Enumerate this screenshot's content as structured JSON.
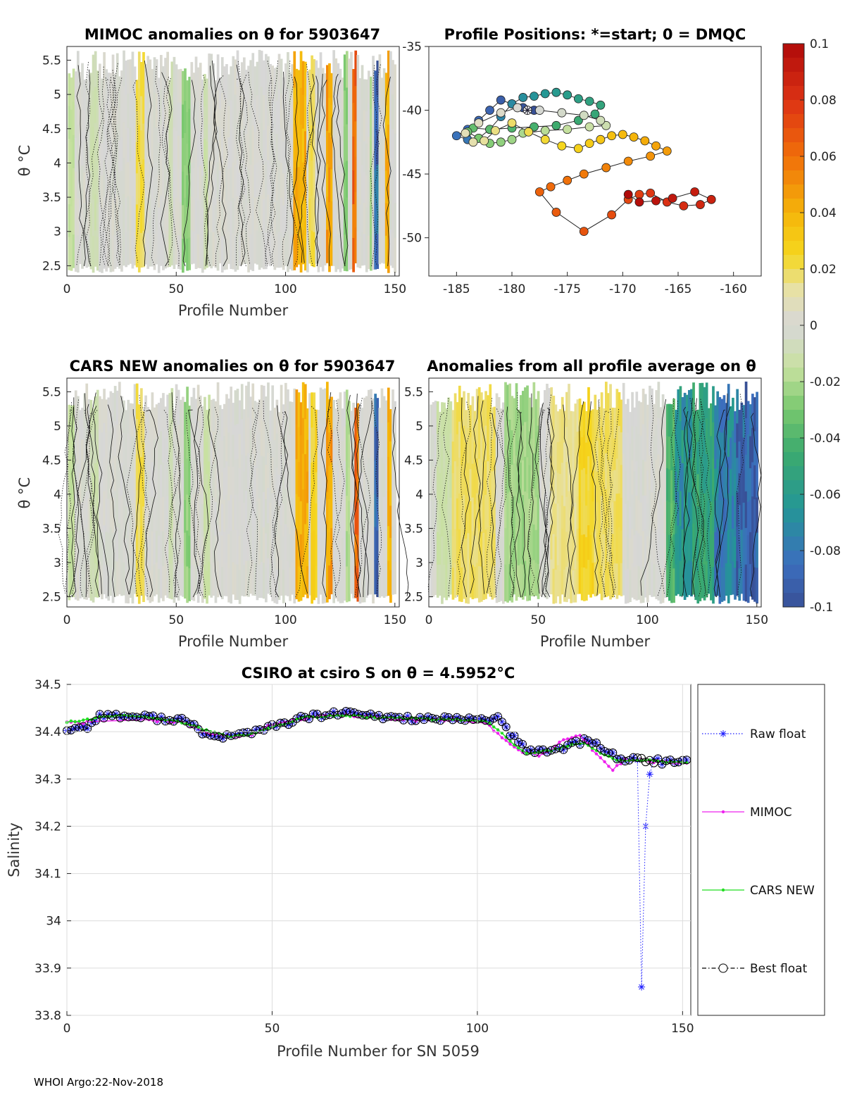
{
  "footer": "WHOI Argo:22-Nov-2018",
  "chart_data": [
    {
      "type": "heatmap",
      "title": "MIMOC anomalies on θ  for 5903647",
      "xlabel": "Profile Number",
      "ylabel": "θ °C",
      "xlim": [
        0,
        152
      ],
      "ylim": [
        2.35,
        5.7
      ],
      "xticks": [
        "0",
        "50",
        "100",
        "150"
      ],
      "yticks": [
        "2.5",
        "3",
        "3.5",
        "4",
        "4.5",
        "5",
        "5.5"
      ],
      "bands": [
        {
          "x": [
            0,
            3
          ],
          "value": -0.015
        },
        {
          "x": [
            10,
            14
          ],
          "value": -0.01
        },
        {
          "x": [
            31,
            35
          ],
          "value": 0.02
        },
        {
          "x": [
            46,
            48
          ],
          "value": -0.01
        },
        {
          "x": [
            52,
            56
          ],
          "value": -0.025
        },
        {
          "x": [
            62,
            64
          ],
          "value": -0.012
        },
        {
          "x": [
            103,
            109
          ],
          "value": 0.04
        },
        {
          "x": [
            110,
            113
          ],
          "value": 0.02
        },
        {
          "x": [
            118,
            121
          ],
          "value": 0.045
        },
        {
          "x": [
            126,
            128
          ],
          "value": -0.025
        },
        {
          "x": [
            130,
            132
          ],
          "value": 0.06
        },
        {
          "x": [
            138,
            139
          ],
          "value": -0.02
        },
        {
          "x": [
            140,
            142
          ],
          "value": -0.09
        },
        {
          "x": [
            145,
            147
          ],
          "value": 0.04
        }
      ]
    },
    {
      "type": "scatter",
      "title": "Profile Positions: *=start; 0 = DMQC",
      "xlabel": "",
      "ylabel": "",
      "xlim": [
        -187.5,
        -157.5
      ],
      "ylim": [
        -53,
        -35
      ],
      "xticks": [
        "-185",
        "-180",
        "-175",
        "-170",
        "-165",
        "-160"
      ],
      "yticks": [
        "-35",
        "-40",
        "-45",
        "-50"
      ],
      "lon": [
        -178,
        -179,
        -180,
        -181,
        -182,
        -183,
        -184,
        -185,
        -184,
        -183,
        -182,
        -181,
        -180,
        -179,
        -178,
        -177,
        -176,
        -175,
        -174,
        -173,
        -172,
        -172.5,
        -174,
        -176,
        -178,
        -180,
        -182,
        -183.5,
        -184,
        -183,
        -182,
        -181,
        -180,
        -179,
        -177,
        -175,
        -173,
        -171.5,
        -172,
        -173.5,
        -175.5,
        -177.5,
        -179.5,
        -181,
        -183,
        -184.2,
        -183.5,
        -182.5,
        -181.5,
        -180,
        -178.5,
        -177,
        -175.5,
        -174,
        -173,
        -172,
        -171,
        -170,
        -169,
        -168,
        -167,
        -166,
        -167.5,
        -169.5,
        -171.5,
        -173.5,
        -175,
        -176.5,
        -177.5,
        -176,
        -173.5,
        -171,
        -169.5,
        -168.5,
        -167.5,
        -166,
        -164.5,
        -163,
        -162,
        -163.5,
        -165.5,
        -167,
        -168.5,
        -169.5
      ],
      "lat": [
        -40,
        -39.8,
        -39.5,
        -39.2,
        -40,
        -40.8,
        -41.5,
        -42,
        -42.3,
        -42.2,
        -41.5,
        -40.5,
        -39.5,
        -39,
        -38.9,
        -38.7,
        -38.6,
        -38.8,
        -39.1,
        -39.3,
        -39.6,
        -40.3,
        -40.8,
        -41.2,
        -41.3,
        -41.4,
        -41.5,
        -41.4,
        -41.7,
        -42.2,
        -42.6,
        -42.5,
        -42.3,
        -41.8,
        -41.6,
        -41.5,
        -41.3,
        -41.2,
        -40.8,
        -40.4,
        -40.2,
        -40.0,
        -39.8,
        -40.2,
        -41.0,
        -41.8,
        -42.5,
        -42.4,
        -41.6,
        -41.0,
        -41.7,
        -42.3,
        -42.8,
        -43.0,
        -42.6,
        -42.3,
        -42.0,
        -41.9,
        -42.1,
        -42.4,
        -42.8,
        -43.2,
        -43.6,
        -44.0,
        -44.5,
        -45.0,
        -45.5,
        -46.0,
        -46.4,
        -48.0,
        -49.5,
        -48.2,
        -47.0,
        -46.6,
        -46.5,
        -47.2,
        -47.5,
        -47.4,
        -47.0,
        -46.4,
        -46.9,
        -47.1,
        -47.2,
        -46.6
      ],
      "start_lon": -178.6,
      "start_lat": -40.0
    },
    {
      "type": "heatmap",
      "title": "CARS NEW anomalies on θ for 5903647",
      "xlabel": "Profile Number",
      "ylabel": "θ °C",
      "xlim": [
        0,
        152
      ],
      "ylim": [
        2.35,
        5.7
      ],
      "xticks": [
        "0",
        "50",
        "100",
        "150"
      ],
      "yticks": [
        "2.5",
        "3",
        "3.5",
        "4",
        "4.5",
        "5",
        "5.5"
      ],
      "bands": [
        {
          "x": [
            0,
            3
          ],
          "value": -0.015
        },
        {
          "x": [
            10,
            14
          ],
          "value": -0.01
        },
        {
          "x": [
            31,
            35
          ],
          "value": 0.02
        },
        {
          "x": [
            46,
            48
          ],
          "value": -0.01
        },
        {
          "x": [
            53,
            56
          ],
          "value": -0.025
        },
        {
          "x": [
            62,
            65
          ],
          "value": -0.012
        },
        {
          "x": [
            104,
            110
          ],
          "value": 0.04
        },
        {
          "x": [
            111,
            114
          ],
          "value": 0.025
        },
        {
          "x": [
            118,
            121
          ],
          "value": 0.045
        },
        {
          "x": [
            127,
            129
          ],
          "value": -0.02
        },
        {
          "x": [
            131,
            133
          ],
          "value": 0.06
        },
        {
          "x": [
            140,
            142
          ],
          "value": -0.09
        },
        {
          "x": [
            146,
            148
          ],
          "value": 0.04
        }
      ]
    },
    {
      "type": "heatmap",
      "title": "Anomalies from all profile average on θ",
      "xlabel": "Profile Number",
      "ylabel": "",
      "xlim": [
        0,
        152
      ],
      "ylim": [
        2.35,
        5.7
      ],
      "xticks": [
        "0",
        "50",
        "100",
        "150"
      ],
      "yticks": [
        "2.5",
        "3",
        "3.5",
        "4",
        "4.5",
        "5",
        "5.5"
      ],
      "bands": [
        {
          "x": [
            3,
            10
          ],
          "value": -0.012
        },
        {
          "x": [
            10,
            30
          ],
          "value": 0.018
        },
        {
          "x": [
            34,
            50
          ],
          "value": -0.022
        },
        {
          "x": [
            55,
            68
          ],
          "value": 0.015
        },
        {
          "x": [
            68,
            75
          ],
          "value": 0.025
        },
        {
          "x": [
            75,
            88
          ],
          "value": 0.018
        },
        {
          "x": [
            108,
            112
          ],
          "value": -0.04
        },
        {
          "x": [
            112,
            120
          ],
          "value": -0.065
        },
        {
          "x": [
            120,
            130
          ],
          "value": -0.05
        },
        {
          "x": [
            130,
            140
          ],
          "value": -0.075
        },
        {
          "x": [
            140,
            152
          ],
          "value": -0.09
        }
      ]
    },
    {
      "type": "colorbar",
      "ticks": [
        "0.1",
        "0.08",
        "0.06",
        "0.04",
        "0.02",
        "0",
        "-0.02",
        "-0.04",
        "-0.06",
        "-0.08",
        "-0.1"
      ],
      "range": [
        -0.1,
        0.1
      ]
    },
    {
      "type": "line",
      "title": "CSIRO at csiro S on θ = 4.5952°C",
      "xlabel": "Profile Number for SN 5059",
      "ylabel": "Salinity",
      "xlim": [
        0,
        152
      ],
      "ylim": [
        33.8,
        34.5
      ],
      "xticks": [
        "0",
        "50",
        "100",
        "150"
      ],
      "yticks": [
        "33.8",
        "33.9",
        "34",
        "34.1",
        "34.2",
        "34.3",
        "34.4",
        "34.5"
      ],
      "anchors": {
        "best": [
          [
            0,
            34.405
          ],
          [
            5,
            34.41
          ],
          [
            8,
            34.435
          ],
          [
            15,
            34.432
          ],
          [
            20,
            34.43
          ],
          [
            28,
            34.425
          ],
          [
            35,
            34.39
          ],
          [
            40,
            34.39
          ],
          [
            45,
            34.4
          ],
          [
            50,
            34.41
          ],
          [
            58,
            34.43
          ],
          [
            68,
            34.44
          ],
          [
            75,
            34.432
          ],
          [
            85,
            34.428
          ],
          [
            95,
            34.425
          ],
          [
            105,
            34.428
          ],
          [
            108,
            34.395
          ],
          [
            112,
            34.36
          ],
          [
            118,
            34.36
          ],
          [
            122,
            34.37
          ],
          [
            126,
            34.38
          ],
          [
            130,
            34.37
          ],
          [
            134,
            34.345
          ],
          [
            138,
            34.34
          ],
          [
            142,
            34.34
          ],
          [
            146,
            34.335
          ],
          [
            151,
            34.337
          ]
        ],
        "raw_dip": [
          [
            137,
            34.34
          ],
          [
            139,
            34.34
          ],
          [
            140,
            33.86
          ],
          [
            141,
            34.2
          ],
          [
            142,
            34.31
          ],
          [
            143,
            34.34
          ]
        ],
        "mimoc": [
          [
            0,
            34.42
          ],
          [
            5,
            34.42
          ],
          [
            8,
            34.432
          ],
          [
            15,
            34.435
          ],
          [
            20,
            34.425
          ],
          [
            28,
            34.42
          ],
          [
            35,
            34.395
          ],
          [
            40,
            34.39
          ],
          [
            45,
            34.395
          ],
          [
            50,
            34.415
          ],
          [
            58,
            34.428
          ],
          [
            68,
            34.435
          ],
          [
            75,
            34.43
          ],
          [
            85,
            34.425
          ],
          [
            95,
            34.425
          ],
          [
            102,
            34.42
          ],
          [
            105,
            34.395
          ],
          [
            110,
            34.36
          ],
          [
            115,
            34.35
          ],
          [
            118,
            34.36
          ],
          [
            120,
            34.375
          ],
          [
            123,
            34.39
          ],
          [
            125,
            34.395
          ],
          [
            128,
            34.36
          ],
          [
            131,
            34.335
          ],
          [
            133,
            34.32
          ],
          [
            136,
            34.34
          ],
          [
            140,
            34.34
          ],
          [
            146,
            34.335
          ],
          [
            151,
            34.335
          ]
        ],
        "cars": [
          [
            0,
            34.42
          ],
          [
            5,
            34.425
          ],
          [
            8,
            34.43
          ],
          [
            15,
            34.435
          ],
          [
            20,
            34.43
          ],
          [
            28,
            34.42
          ],
          [
            35,
            34.4
          ],
          [
            40,
            34.39
          ],
          [
            45,
            34.395
          ],
          [
            50,
            34.41
          ],
          [
            58,
            34.43
          ],
          [
            68,
            34.435
          ],
          [
            75,
            34.43
          ],
          [
            85,
            34.428
          ],
          [
            95,
            34.425
          ],
          [
            103,
            34.42
          ],
          [
            108,
            34.38
          ],
          [
            112,
            34.355
          ],
          [
            118,
            34.36
          ],
          [
            122,
            34.37
          ],
          [
            126,
            34.375
          ],
          [
            130,
            34.355
          ],
          [
            134,
            34.34
          ],
          [
            138,
            34.34
          ],
          [
            142,
            34.34
          ],
          [
            146,
            34.335
          ],
          [
            151,
            34.335
          ]
        ]
      },
      "legend": [
        {
          "name": "Raw float",
          "color": "#1a1aff",
          "style": "dotted",
          "marker": "*"
        },
        {
          "name": "MIMOC",
          "color": "#ee22ee",
          "style": "solid",
          "marker": "."
        },
        {
          "name": "CARS NEW",
          "color": "#22dd22",
          "style": "solid",
          "marker": "."
        },
        {
          "name": "Best float",
          "color": "#000000",
          "style": "dashdot",
          "marker": "o"
        }
      ]
    }
  ]
}
